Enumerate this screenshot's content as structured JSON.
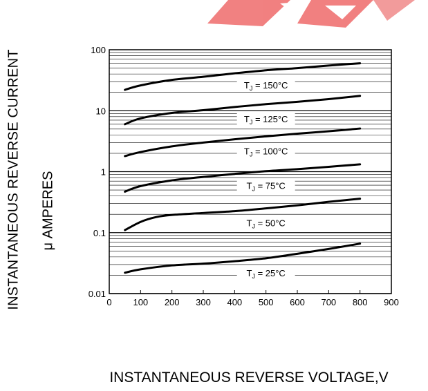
{
  "chart_data": {
    "type": "line",
    "xlabel": "INSTANTANEOUS REVERSE VOLTAGE,V",
    "ylabel_line1": "INSTANTANEOUS REVERSE CURRENT",
    "ylabel_line2": "μ AMPERES",
    "x_scale": "linear",
    "y_scale": "log",
    "xlim": [
      0,
      900
    ],
    "ylim": [
      0.01,
      100
    ],
    "x_ticks": [
      "0",
      "100",
      "200",
      "300",
      "400",
      "500",
      "600",
      "700",
      "800",
      "900"
    ],
    "y_ticks": [
      "0.01",
      "0.1",
      "1",
      "10",
      "100"
    ],
    "grid": "log-minor horizontal lines, no vertical lines",
    "series": [
      {
        "name": "TJ = 150°C",
        "label_sub": "J",
        "label_text": " = 150°C",
        "label_at_x": 500,
        "points": [
          [
            50,
            22
          ],
          [
            100,
            26
          ],
          [
            200,
            32
          ],
          [
            300,
            36
          ],
          [
            400,
            41
          ],
          [
            500,
            46
          ],
          [
            600,
            50
          ],
          [
            700,
            55
          ],
          [
            800,
            60
          ]
        ]
      },
      {
        "name": "TJ = 125°C",
        "label_sub": "J",
        "label_text": " = 125°C",
        "label_at_x": 500,
        "points": [
          [
            50,
            6
          ],
          [
            100,
            7.5
          ],
          [
            200,
            9.2
          ],
          [
            300,
            10.2
          ],
          [
            400,
            11.5
          ],
          [
            500,
            12.8
          ],
          [
            600,
            14
          ],
          [
            700,
            15.5
          ],
          [
            800,
            17.5
          ]
        ]
      },
      {
        "name": "TJ = 100°C",
        "label_sub": "J",
        "label_text": " = 100°C",
        "label_at_x": 500,
        "points": [
          [
            50,
            1.8
          ],
          [
            100,
            2.1
          ],
          [
            200,
            2.6
          ],
          [
            300,
            3.0
          ],
          [
            400,
            3.4
          ],
          [
            500,
            3.8
          ],
          [
            600,
            4.2
          ],
          [
            700,
            4.6
          ],
          [
            800,
            5.1
          ]
        ]
      },
      {
        "name": "TJ = 75°C",
        "label_sub": "J",
        "label_text": " = 75°C",
        "label_at_x": 500,
        "points": [
          [
            50,
            0.47
          ],
          [
            100,
            0.58
          ],
          [
            200,
            0.72
          ],
          [
            300,
            0.82
          ],
          [
            400,
            0.92
          ],
          [
            500,
            1.02
          ],
          [
            600,
            1.1
          ],
          [
            700,
            1.2
          ],
          [
            800,
            1.32
          ]
        ]
      },
      {
        "name": "TJ = 50°C",
        "label_sub": "J",
        "label_text": " = 50°C",
        "label_at_x": 500,
        "points": [
          [
            50,
            0.11
          ],
          [
            100,
            0.15
          ],
          [
            150,
            0.18
          ],
          [
            200,
            0.195
          ],
          [
            300,
            0.21
          ],
          [
            400,
            0.225
          ],
          [
            500,
            0.25
          ],
          [
            600,
            0.28
          ],
          [
            700,
            0.32
          ],
          [
            800,
            0.36
          ]
        ]
      },
      {
        "name": "TJ = 25°C",
        "label_sub": "J",
        "label_text": " = 25°C",
        "label_at_x": 500,
        "points": [
          [
            50,
            0.022
          ],
          [
            100,
            0.025
          ],
          [
            200,
            0.029
          ],
          [
            300,
            0.031
          ],
          [
            400,
            0.034
          ],
          [
            500,
            0.038
          ],
          [
            600,
            0.045
          ],
          [
            700,
            0.054
          ],
          [
            800,
            0.066
          ]
        ]
      }
    ]
  }
}
